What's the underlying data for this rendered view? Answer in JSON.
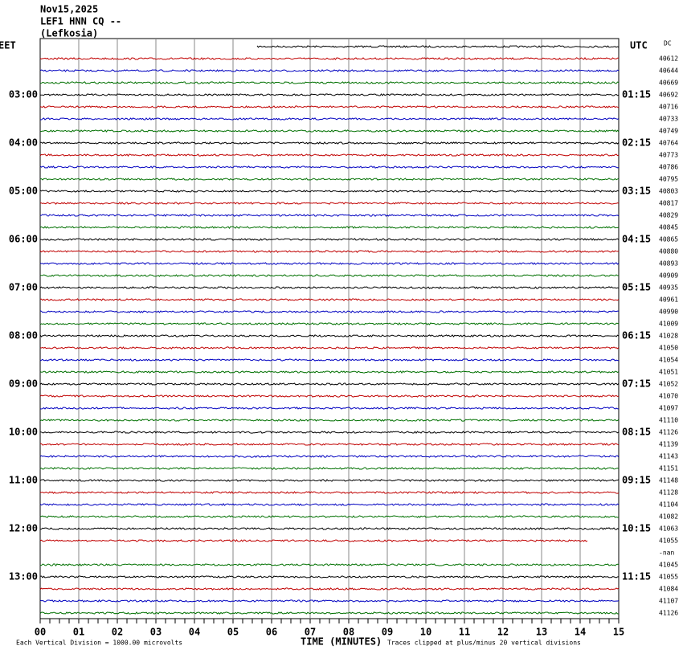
{
  "header": {
    "date": "Nov15,2025",
    "station": "LEF1 HNN CQ --",
    "location": "(Lefkosia)"
  },
  "left_axis": {
    "title": "EET",
    "labels": [
      "03:00",
      "04:00",
      "05:00",
      "06:00",
      "07:00",
      "08:00",
      "09:00",
      "10:00",
      "11:00",
      "12:00",
      "13:00"
    ]
  },
  "right_axis": {
    "title": "UTC",
    "labels": [
      "01:15",
      "02:15",
      "03:15",
      "04:15",
      "05:15",
      "06:15",
      "07:15",
      "08:15",
      "09:15",
      "10:15",
      "11:15"
    ]
  },
  "dc": {
    "title": "DC",
    "values": [
      40612,
      40644,
      40669,
      40692,
      40716,
      40733,
      40749,
      40764,
      40773,
      40786,
      40795,
      40803,
      40817,
      40829,
      40845,
      40865,
      40880,
      40893,
      40909,
      40935,
      40961,
      40990,
      41009,
      41028,
      41050,
      41054,
      41051,
      41052,
      41070,
      41097,
      41110,
      41126,
      41139,
      41143,
      41151,
      41148,
      41128,
      41104,
      41082,
      41063,
      41055,
      "-nan",
      41045,
      41055,
      41084,
      41107,
      41126
    ]
  },
  "x_axis": {
    "title": "TIME (MINUTES)",
    "ticks": [
      "00",
      "01",
      "02",
      "03",
      "04",
      "05",
      "06",
      "07",
      "08",
      "09",
      "10",
      "11",
      "12",
      "13",
      "14",
      "15"
    ]
  },
  "footer": {
    "scale": "Each Vertical Division = 1000.00 microvolts",
    "clip": "Traces clipped at plus/minus 20 vertical divisions"
  }
}
